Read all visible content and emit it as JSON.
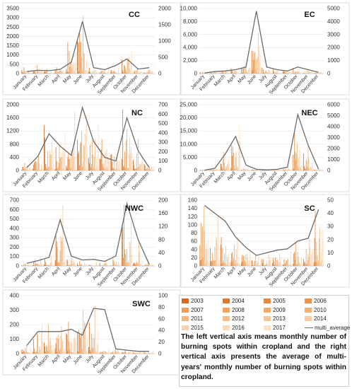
{
  "months": [
    "January",
    "February",
    "March",
    "April",
    "May",
    "June",
    "July",
    "August",
    "September",
    "October",
    "November",
    "December"
  ],
  "legend": {
    "items": [
      {
        "label": "2003",
        "color": "#d36a1c"
      },
      {
        "label": "2004",
        "color": "#e0782a"
      },
      {
        "label": "2005",
        "color": "#e8873a"
      },
      {
        "label": "2006",
        "color": "#f0914a"
      },
      {
        "label": "2007",
        "color": "#f29c55"
      },
      {
        "label": "2008",
        "color": "#f4a35e"
      },
      {
        "label": "2009",
        "color": "#f5aa68"
      },
      {
        "label": "2010",
        "color": "#f6b072"
      },
      {
        "label": "2011",
        "color": "#f7b77e"
      },
      {
        "label": "2012",
        "color": "#f8bd89"
      },
      {
        "label": "2013",
        "color": "#f9c495"
      },
      {
        "label": "2014",
        "color": "#facba1"
      },
      {
        "label": "2015",
        "color": "#fbd2ad"
      },
      {
        "label": "2016",
        "color": "#fcd9b9"
      },
      {
        "label": "2017",
        "color": "#fde0c5"
      },
      {
        "label": "multi_average",
        "color": "#6b6b6b"
      }
    ]
  },
  "caption": "The left vertical axis means monthly number of burning spots within cropland and the right vertical axis presents the average of multi-years' monthly number of burning spots within cropland.",
  "chart_data": [
    {
      "id": "CC",
      "type": "bar",
      "title": "CC",
      "ylim_left": [
        0,
        3500
      ],
      "yticks_left": [
        "0",
        "500",
        "1000",
        "1500",
        "2000",
        "2500",
        "3000",
        "3500"
      ],
      "ylim_right": [
        0,
        2000
      ],
      "yticks_right": [
        "0",
        "500",
        "1000",
        "1500",
        "2000"
      ],
      "monthly_peak": [
        350,
        450,
        250,
        350,
        1700,
        3100,
        300,
        250,
        300,
        1250,
        250,
        250
      ],
      "multi_average": [
        60,
        100,
        90,
        130,
        350,
        1600,
        180,
        120,
        250,
        450,
        140,
        180
      ]
    },
    {
      "id": "EC",
      "type": "bar",
      "title": "EC",
      "ylim_left": [
        0,
        10000
      ],
      "yticks_left": [
        "0",
        "2,000",
        "4,000",
        "6,000",
        "8,000",
        "10,000"
      ],
      "ylim_right": [
        0,
        5000
      ],
      "yticks_right": [
        "0",
        "1000",
        "2000",
        "3000",
        "4000",
        "5000"
      ],
      "monthly_peak": [
        300,
        400,
        550,
        800,
        1600,
        6300,
        900,
        700,
        500,
        900,
        700,
        400
      ],
      "multi_average": [
        50,
        150,
        200,
        300,
        500,
        4800,
        500,
        300,
        200,
        500,
        300,
        100
      ]
    },
    {
      "id": "NC",
      "type": "bar",
      "title": "NC",
      "ylim_left": [
        0,
        2000
      ],
      "yticks_left": [
        "0",
        "400",
        "800",
        "1200",
        "1600",
        "2000"
      ],
      "ylim_right": [
        0,
        700
      ],
      "yticks_right": [
        "0",
        "100",
        "200",
        "300",
        "400",
        "500",
        "600",
        "700"
      ],
      "monthly_peak": [
        230,
        500,
        1370,
        1100,
        1800,
        1700,
        1400,
        950,
        700,
        1850,
        950,
        200
      ],
      "multi_average": [
        30,
        150,
        390,
        260,
        160,
        670,
        310,
        140,
        100,
        560,
        210,
        30
      ]
    },
    {
      "id": "NEC",
      "type": "bar",
      "title": "NEC",
      "ylim_left": [
        0,
        25000
      ],
      "yticks_left": [
        "0",
        "5,000",
        "10,000",
        "15,000",
        "20,000",
        "25,000"
      ],
      "ylim_right": [
        0,
        6000
      ],
      "yticks_right": [
        "0",
        "1000",
        "2000",
        "3000",
        "4000",
        "5000",
        "6000"
      ],
      "monthly_peak": [
        300,
        1000,
        7000,
        17000,
        800,
        400,
        300,
        400,
        800,
        15000,
        10000,
        500
      ],
      "multi_average": [
        30,
        200,
        1500,
        3100,
        500,
        100,
        50,
        100,
        300,
        5100,
        2300,
        100
      ]
    },
    {
      "id": "NWC",
      "type": "bar",
      "title": "NWC",
      "ylim_left": [
        0,
        700
      ],
      "yticks_left": [
        "0",
        "100",
        "200",
        "300",
        "400",
        "500",
        "600",
        "700"
      ],
      "ylim_right": [
        0,
        200
      ],
      "yticks_right": [
        "0",
        "40",
        "80",
        "120",
        "160",
        "200"
      ],
      "monthly_peak": [
        30,
        100,
        110,
        650,
        100,
        50,
        50,
        50,
        80,
        650,
        250,
        30
      ],
      "multi_average": [
        8,
        16,
        26,
        140,
        30,
        18,
        20,
        14,
        30,
        190,
        80,
        5
      ]
    },
    {
      "id": "SC",
      "type": "bar",
      "title": "SC",
      "ylim_left": [
        0,
        160
      ],
      "yticks_left": [
        "0",
        "20",
        "40",
        "60",
        "80",
        "100",
        "120",
        "140",
        "160"
      ],
      "ylim_right": [
        0,
        50
      ],
      "yticks_right": [
        "0",
        "10",
        "20",
        "30",
        "40",
        "50"
      ],
      "monthly_peak": [
        145,
        120,
        70,
        70,
        40,
        28,
        28,
        30,
        36,
        58,
        68,
        135
      ],
      "multi_average": [
        46,
        40,
        34,
        22,
        14,
        8,
        10,
        12,
        13,
        19,
        21,
        43
      ]
    },
    {
      "id": "SWC",
      "type": "bar",
      "title": "SWC",
      "ylim_left": [
        0,
        400
      ],
      "yticks_left": [
        "0",
        "100",
        "200",
        "300",
        "400"
      ],
      "ylim_right": [
        0,
        100
      ],
      "yticks_right": [
        "0",
        "20",
        "40",
        "60",
        "80",
        "100"
      ],
      "monthly_peak": [
        60,
        200,
        200,
        190,
        220,
        300,
        330,
        40,
        40,
        30,
        20,
        20
      ],
      "multi_average": [
        14,
        38,
        38,
        38,
        42,
        32,
        78,
        76,
        8,
        6,
        4,
        4
      ]
    }
  ]
}
